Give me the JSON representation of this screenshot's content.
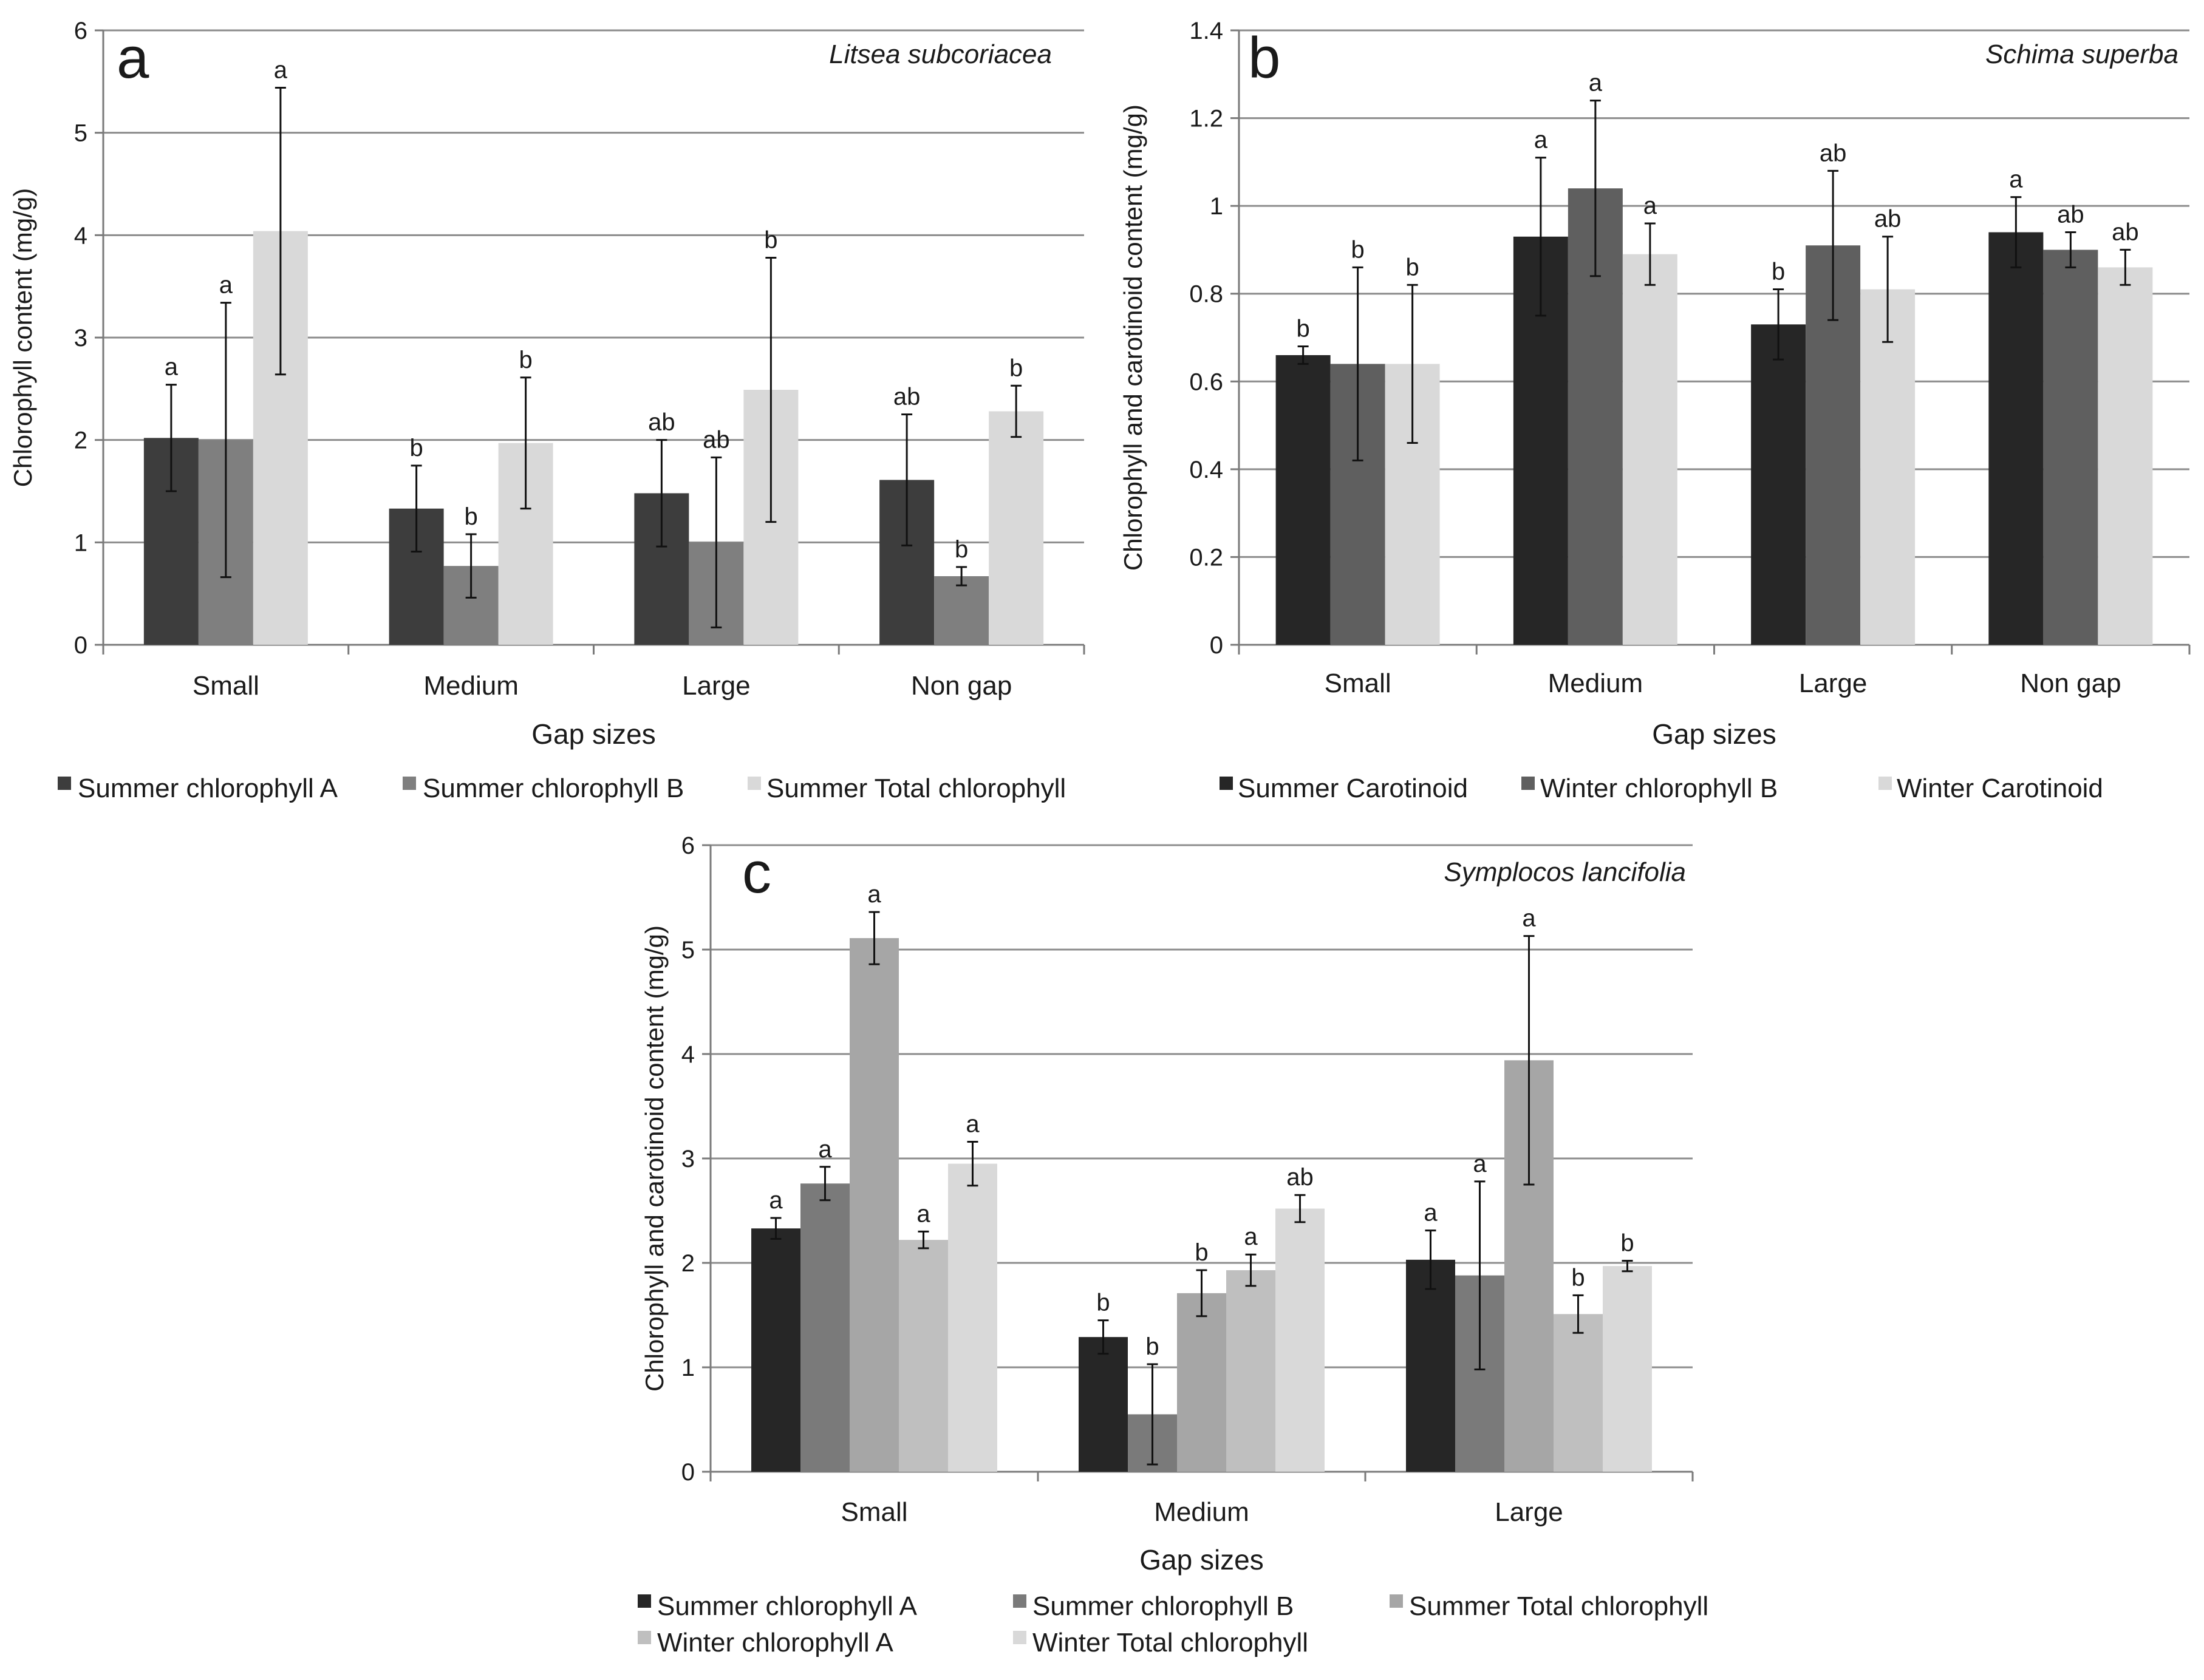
{
  "chart_data": [
    {
      "type": "bar",
      "panel_label": "a",
      "species": "Litsea subcoriacea",
      "xlabel": "Gap sizes",
      "ylabel": "Chlorophyll content (mg/g)",
      "ylim": [
        0,
        6
      ],
      "yticks": [
        "0",
        "1",
        "2",
        "3",
        "4",
        "5",
        "6"
      ],
      "grid": true,
      "legend_position": "bottom",
      "categories": [
        "Small",
        "Medium",
        "Large",
        "Non gap"
      ],
      "series": [
        {
          "name": "Summer chlorophyll A",
          "color": "#3d3d3d",
          "values": [
            2.02,
            1.33,
            1.48,
            1.61
          ],
          "errors": [
            0.52,
            0.42,
            0.52,
            0.64
          ],
          "letters": [
            "a",
            "b",
            "ab",
            "ab"
          ]
        },
        {
          "name": "Summer chlorophyll B",
          "color": "#7f7f7f",
          "values": [
            2.0,
            0.77,
            1.0,
            0.67
          ],
          "errors": [
            1.34,
            0.31,
            0.83,
            0.09
          ],
          "letters": [
            "a",
            "b",
            "ab",
            "b"
          ]
        },
        {
          "name": "Summer Total chlorophyll",
          "color": "#d9d9d9",
          "values": [
            4.04,
            1.97,
            2.49,
            2.28
          ],
          "errors": [
            1.4,
            0.64,
            1.29,
            0.25
          ],
          "letters": [
            "a",
            "b",
            "b",
            "b"
          ]
        }
      ]
    },
    {
      "type": "bar",
      "panel_label": "b",
      "species": "Schima superba",
      "xlabel": "Gap sizes",
      "ylabel": "Chlorophyll and carotinoid content (mg/g)",
      "ylim": [
        0,
        1.4
      ],
      "yticks": [
        "0",
        "0.2",
        "0.4",
        "0.6",
        "0.8",
        "1",
        "1.2",
        "1.4"
      ],
      "grid": true,
      "legend_position": "bottom",
      "categories": [
        "Small",
        "Medium",
        "Large",
        "Non gap"
      ],
      "series": [
        {
          "name": "Summer Carotinoid",
          "color": "#262626",
          "values": [
            0.66,
            0.93,
            0.73,
            0.94
          ],
          "errors": [
            0.02,
            0.18,
            0.08,
            0.08
          ],
          "letters": [
            "b",
            "a",
            "b",
            "a"
          ]
        },
        {
          "name": "Winter chlorophyll B",
          "color": "#5f5f5f",
          "values": [
            0.64,
            1.04,
            0.91,
            0.9
          ],
          "errors": [
            0.22,
            0.2,
            0.17,
            0.04
          ],
          "letters": [
            "b",
            "a",
            "ab",
            "ab"
          ]
        },
        {
          "name": "Winter Carotinoid",
          "color": "#d9d9d9",
          "values": [
            0.64,
            0.89,
            0.81,
            0.86
          ],
          "errors": [
            0.18,
            0.07,
            0.12,
            0.04
          ],
          "letters": [
            "b",
            "a",
            "ab",
            "ab"
          ]
        }
      ]
    },
    {
      "type": "bar",
      "panel_label": "c",
      "species": "Symplocos lancifolia",
      "xlabel": "Gap sizes",
      "ylabel": "Chlorophyll and carotinoid content (mg/g)",
      "ylim": [
        0,
        6
      ],
      "yticks": [
        "0",
        "1",
        "2",
        "3",
        "4",
        "5",
        "6"
      ],
      "grid": true,
      "legend_position": "bottom",
      "categories": [
        "Small",
        "Medium",
        "Large"
      ],
      "series": [
        {
          "name": "Summer chlorophyll A",
          "color": "#262626",
          "values": [
            2.33,
            1.29,
            2.03
          ],
          "errors": [
            0.1,
            0.16,
            0.28
          ],
          "letters": [
            "a",
            "b",
            "a"
          ]
        },
        {
          "name": "Summer chlorophyll B",
          "color": "#7a7a7a",
          "values": [
            2.76,
            0.55,
            1.88
          ],
          "errors": [
            0.16,
            0.48,
            0.9
          ],
          "letters": [
            "a",
            "b",
            "a"
          ]
        },
        {
          "name": "Summer Total chlorophyll",
          "color": "#a6a6a6",
          "values": [
            5.11,
            1.71,
            3.94
          ],
          "errors": [
            0.25,
            0.22,
            1.19
          ],
          "letters": [
            "a",
            "b",
            "a"
          ]
        },
        {
          "name": "Winter chlorophyll A",
          "color": "#bfbfbf",
          "values": [
            2.22,
            1.93,
            1.51
          ],
          "errors": [
            0.08,
            0.15,
            0.18
          ],
          "letters": [
            "a",
            "a",
            "b"
          ]
        },
        {
          "name": "Winter Total chlorophyll",
          "color": "#d9d9d9",
          "values": [
            2.95,
            2.52,
            1.97
          ],
          "errors": [
            0.21,
            0.13,
            0.05
          ],
          "letters": [
            "a",
            "ab",
            "b"
          ]
        }
      ]
    }
  ]
}
